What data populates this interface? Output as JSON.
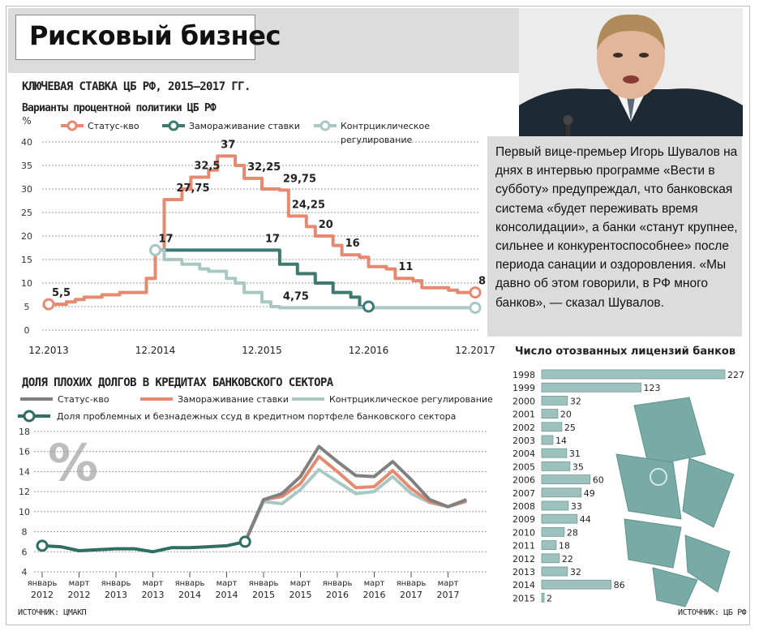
{
  "header": {
    "title": "Рисковый бизнес"
  },
  "quote": {
    "text": "Первый вице-премьер Игорь Шувалов на днях в интервью программе «Вести в субботу» предупреждал, что банковская система «будет переживать время консолидации», а банки «станут крупнее, сильнее и конкурентоспособнее» после периода санации и оздоровления. «Мы давно об этом говорили, в РФ много банков», — сказал Шувалов."
  },
  "chart1": {
    "section_title": "КЛЮЧЕВАЯ СТАВКА ЦБ РФ, 2015–2017 ГГ.",
    "subtitle": "Варианты процентной политики ЦБ РФ"
  },
  "chart2": {
    "section_title": "ДОЛЯ ПЛОХИХ ДОЛГОВ В КРЕДИТАХ БАНКОВСКОГО СЕКТОРА",
    "source": "ИСТОЧНИК: ЦМАКП"
  },
  "chart3": {
    "source": "ИСТОЧНИК: ЦБ РФ"
  },
  "chart_data": [
    {
      "type": "line",
      "title": "Варианты процентной политики ЦБ РФ",
      "ylabel": "%",
      "ylim": [
        0,
        40
      ],
      "y_ticks": [
        0,
        5,
        10,
        15,
        20,
        25,
        30,
        35,
        40
      ],
      "x_ticks": [
        "12.2013",
        "12.2014",
        "12.2015",
        "12.2016",
        "12.2017"
      ],
      "xlim": [
        0,
        48
      ],
      "grid": true,
      "legend_position": "top",
      "series": [
        {
          "name": "Статус-кво",
          "color": "#e58a70",
          "x": [
            0,
            1,
            2,
            3,
            4,
            5,
            6,
            7,
            8,
            9,
            10,
            11,
            12,
            13,
            14,
            15,
            16,
            17,
            18,
            19,
            20,
            21,
            22,
            23,
            24,
            25,
            26,
            27,
            28,
            29,
            30,
            31,
            32,
            33,
            34,
            35,
            36,
            37,
            38,
            39,
            40,
            41,
            42,
            43,
            44,
            45,
            46,
            47,
            48
          ],
          "y": [
            5.5,
            5.5,
            6,
            6.5,
            7,
            7,
            7.5,
            7.5,
            8,
            8,
            8,
            11,
            17,
            27.75,
            27.75,
            30,
            32.5,
            32.5,
            34,
            37,
            37,
            35,
            32.25,
            32.25,
            30,
            30,
            29.75,
            24.25,
            24.25,
            22,
            20,
            20,
            18,
            16,
            16,
            15.5,
            13.5,
            13.5,
            13,
            11,
            11,
            10.5,
            9,
            9,
            9,
            8.5,
            8,
            8,
            8
          ]
        },
        {
          "name": "Замораживание ставки",
          "color": "#3d7a72",
          "x": [
            12,
            13,
            14,
            15,
            16,
            17,
            18,
            19,
            20,
            21,
            22,
            23,
            24,
            25,
            26,
            27,
            28,
            29,
            30,
            31,
            32,
            33,
            34,
            35,
            36
          ],
          "y": [
            17,
            17,
            17,
            17,
            17,
            17,
            17,
            17,
            17,
            17,
            17,
            17,
            17,
            17,
            14,
            14,
            12,
            12,
            10,
            10,
            8,
            8,
            7,
            5,
            5
          ]
        },
        {
          "name": "Контрциклическое регулирование",
          "color": "#a9c8c4",
          "x": [
            12,
            13,
            14,
            15,
            16,
            17,
            18,
            19,
            20,
            21,
            22,
            23,
            24,
            25,
            26,
            27,
            28,
            29,
            30,
            31,
            32,
            33,
            34,
            35,
            36,
            37,
            38,
            39,
            40,
            41,
            42,
            43,
            44,
            45,
            46,
            47,
            48
          ],
          "y": [
            17,
            15,
            15,
            14,
            14,
            13,
            12.5,
            12.5,
            11,
            10,
            8,
            8,
            6,
            5,
            4.75,
            4.75,
            4.75,
            4.75,
            4.75,
            4.75,
            4.75,
            4.75,
            4.75,
            4.75,
            4.75,
            4.75,
            4.75,
            4.75,
            4.75,
            4.75,
            4.75,
            4.75,
            4.75,
            4.75,
            4.75,
            4.75,
            4.75
          ]
        }
      ],
      "annotations": [
        {
          "x": 0,
          "y": 5.5,
          "text": "5,5"
        },
        {
          "x": 12,
          "y": 17,
          "text": "17"
        },
        {
          "x": 14,
          "y": 27.75,
          "text": "27,75"
        },
        {
          "x": 16,
          "y": 32.5,
          "text": "32,5"
        },
        {
          "x": 19,
          "y": 37,
          "text": "37"
        },
        {
          "x": 22,
          "y": 32.25,
          "text": "32,25"
        },
        {
          "x": 26,
          "y": 29.75,
          "text": "29,75"
        },
        {
          "x": 27,
          "y": 24.25,
          "text": "24,25"
        },
        {
          "x": 30,
          "y": 20,
          "text": "20"
        },
        {
          "x": 33,
          "y": 16,
          "text": "16"
        },
        {
          "x": 24,
          "y": 17,
          "text": "17"
        },
        {
          "x": 26,
          "y": 4.75,
          "text": "4,75"
        },
        {
          "x": 39,
          "y": 11,
          "text": "11"
        },
        {
          "x": 48,
          "y": 8,
          "text": "8"
        }
      ],
      "markers": [
        {
          "series": 0,
          "x": 0,
          "y": 5.5
        },
        {
          "series": 0,
          "x": 48,
          "y": 8
        },
        {
          "series": 2,
          "x": 12,
          "y": 17
        },
        {
          "series": 1,
          "x": 36,
          "y": 5
        },
        {
          "series": 2,
          "x": 48,
          "y": 4.75
        }
      ]
    },
    {
      "type": "line",
      "title": "ДОЛЯ ПЛОХИХ ДОЛГОВ В КРЕДИТАХ БАНКОВСКОГО СЕКТОРА",
      "ylabel": "%",
      "ylim": [
        4,
        18
      ],
      "y_ticks": [
        4,
        6,
        8,
        10,
        12,
        14,
        16,
        18
      ],
      "xlim": [
        0,
        24
      ],
      "grid": true,
      "legend_position": "top",
      "x_ticks": [
        {
          "x": 0,
          "top": "январь",
          "bottom": "2012"
        },
        {
          "x": 2,
          "top": "март",
          "bottom": "2012"
        },
        {
          "x": 4,
          "top": "январь",
          "bottom": "2013"
        },
        {
          "x": 6,
          "top": "март",
          "bottom": "2013"
        },
        {
          "x": 8,
          "top": "январь",
          "bottom": "2014"
        },
        {
          "x": 10,
          "top": "март",
          "bottom": "2014"
        },
        {
          "x": 12,
          "top": "январь",
          "bottom": "2015"
        },
        {
          "x": 14,
          "top": "март",
          "bottom": "2015"
        },
        {
          "x": 16,
          "top": "январь",
          "bottom": "2016"
        },
        {
          "x": 18,
          "top": "март",
          "bottom": "2016"
        },
        {
          "x": 20,
          "top": "январь",
          "bottom": "2017"
        },
        {
          "x": 22,
          "top": "март",
          "bottom": "2017"
        }
      ],
      "series": [
        {
          "name": "Статус-кво",
          "color": "#808080",
          "x": [
            11,
            12,
            13,
            14,
            15,
            16,
            17,
            18,
            19,
            20,
            21,
            22,
            23
          ],
          "y": [
            7,
            11.2,
            11.8,
            13.5,
            16.5,
            15,
            13.6,
            13.5,
            15,
            13.2,
            11.2,
            10.5,
            11.2
          ]
        },
        {
          "name": "Замораживание ставки",
          "color": "#e58a70",
          "x": [
            11,
            12,
            13,
            14,
            15,
            16,
            17,
            18,
            19,
            20,
            21,
            22,
            23
          ],
          "y": [
            7,
            11.2,
            11.5,
            12.8,
            15.5,
            14,
            12.4,
            12.5,
            14.1,
            12.3,
            11.0,
            10.5,
            11.1
          ]
        },
        {
          "name": "Контрциклическое регулирование",
          "color": "#a9c8c4",
          "x": [
            11,
            12,
            13,
            14,
            15,
            16,
            17,
            18,
            19,
            20,
            21,
            22,
            23
          ],
          "y": [
            7,
            11,
            10.8,
            12.2,
            14.2,
            13,
            11.8,
            12,
            13.5,
            11.8,
            10.9,
            10.5,
            11
          ]
        },
        {
          "name": "Доля проблемных и безнадежных ссуд в кредитном портфеле  банковского сектора",
          "color": "#2e6e63",
          "x": [
            0,
            1,
            2,
            3,
            4,
            5,
            6,
            7,
            8,
            9,
            10,
            11
          ],
          "y": [
            6.6,
            6.5,
            6.1,
            6.2,
            6.3,
            6.3,
            6.0,
            6.4,
            6.4,
            6.5,
            6.6,
            7
          ]
        }
      ]
    },
    {
      "type": "bar",
      "title": "Число отозванных лицензий банков",
      "orientation": "horizontal",
      "categories": [
        "1998",
        "1999",
        "2000",
        "2001",
        "2002",
        "2003",
        "2004",
        "2005",
        "2006",
        "2007",
        "2008",
        "2009",
        "2010",
        "2011",
        "2012",
        "2013",
        "2014",
        "2015"
      ],
      "values": [
        227,
        123,
        32,
        20,
        25,
        14,
        31,
        35,
        60,
        49,
        33,
        44,
        28,
        18,
        22,
        32,
        86,
        2
      ],
      "color": "#9dc2bd"
    }
  ]
}
